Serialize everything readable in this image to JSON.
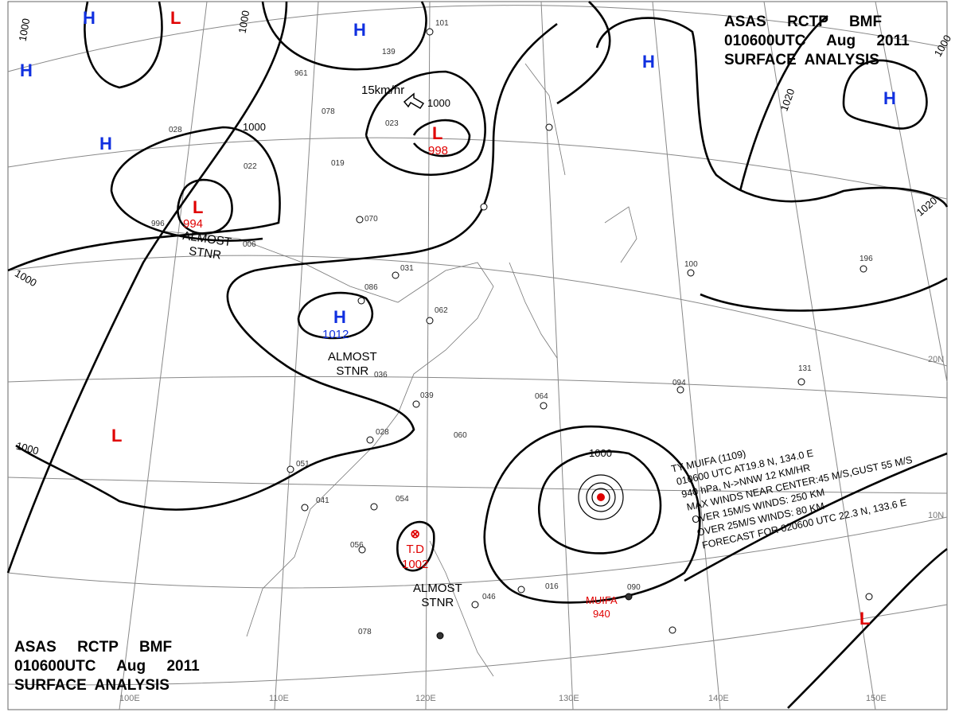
{
  "title_block": {
    "line1": "ASAS     RCTP     BMF",
    "line2": "010600UTC     Aug     2011",
    "line3": "SURFACE  ANALYSIS"
  },
  "colors": {
    "high": "#1030e0",
    "low": "#e00000",
    "isobar": "#000000",
    "grid": "#888888"
  },
  "highs": [
    {
      "label": "H"
    },
    {
      "label": "H"
    },
    {
      "label": "H"
    },
    {
      "label": "H"
    },
    {
      "label": "H"
    },
    {
      "label": "H"
    },
    {
      "label": "H",
      "pressure": "1012"
    }
  ],
  "lows": [
    {
      "label": "L"
    },
    {
      "label": "L",
      "pressure": "998"
    },
    {
      "label": "L",
      "pressure": "994"
    },
    {
      "label": "L"
    },
    {
      "label": "L"
    }
  ],
  "isobar_labels": [
    "1000",
    "1000",
    "1000",
    "1000",
    "1000",
    "1000",
    "1000",
    "1000",
    "1020",
    "1020"
  ],
  "longitude_labels": [
    "100E",
    "110E",
    "120E",
    "130E",
    "140E",
    "150E"
  ],
  "latitude_labels": [
    "20N",
    "10N"
  ],
  "motion_label": "15km/hr",
  "notes": [
    "ALMOST\nSTNR",
    "ALMOST\nSTNR",
    "ALMOST\nSTNR"
  ],
  "tropical_depression": {
    "label": "T.D",
    "pressure": "1002"
  },
  "typhoon": {
    "marker_label": "MUIFA",
    "marker_pressure": "940",
    "bulletin": [
      "TY  MUIFA  (1109)",
      "010600 UTC  AT19.8 N, 134.0 E",
      "940 hPa, N->NNW  12 KM/HR",
      "MAX WINDS NEAR CENTER:45 M/S,GUST 55 M/S",
      "OVER 15M/S WINDS: 250 KM",
      "OVER 25M/S WINDS: 80 KM",
      "FORECAST FOR 020600 UTC 22.3 N, 133.6 E"
    ]
  },
  "station_samples": [
    "016",
    "046",
    "090",
    "078",
    "056",
    "054",
    "041",
    "051",
    "028",
    "039",
    "060",
    "064",
    "094",
    "131",
    "100",
    "196",
    "086",
    "036",
    "031",
    "062",
    "070",
    "006",
    "996",
    "022",
    "023",
    "019",
    "078",
    "139",
    "101",
    "961",
    "028"
  ]
}
